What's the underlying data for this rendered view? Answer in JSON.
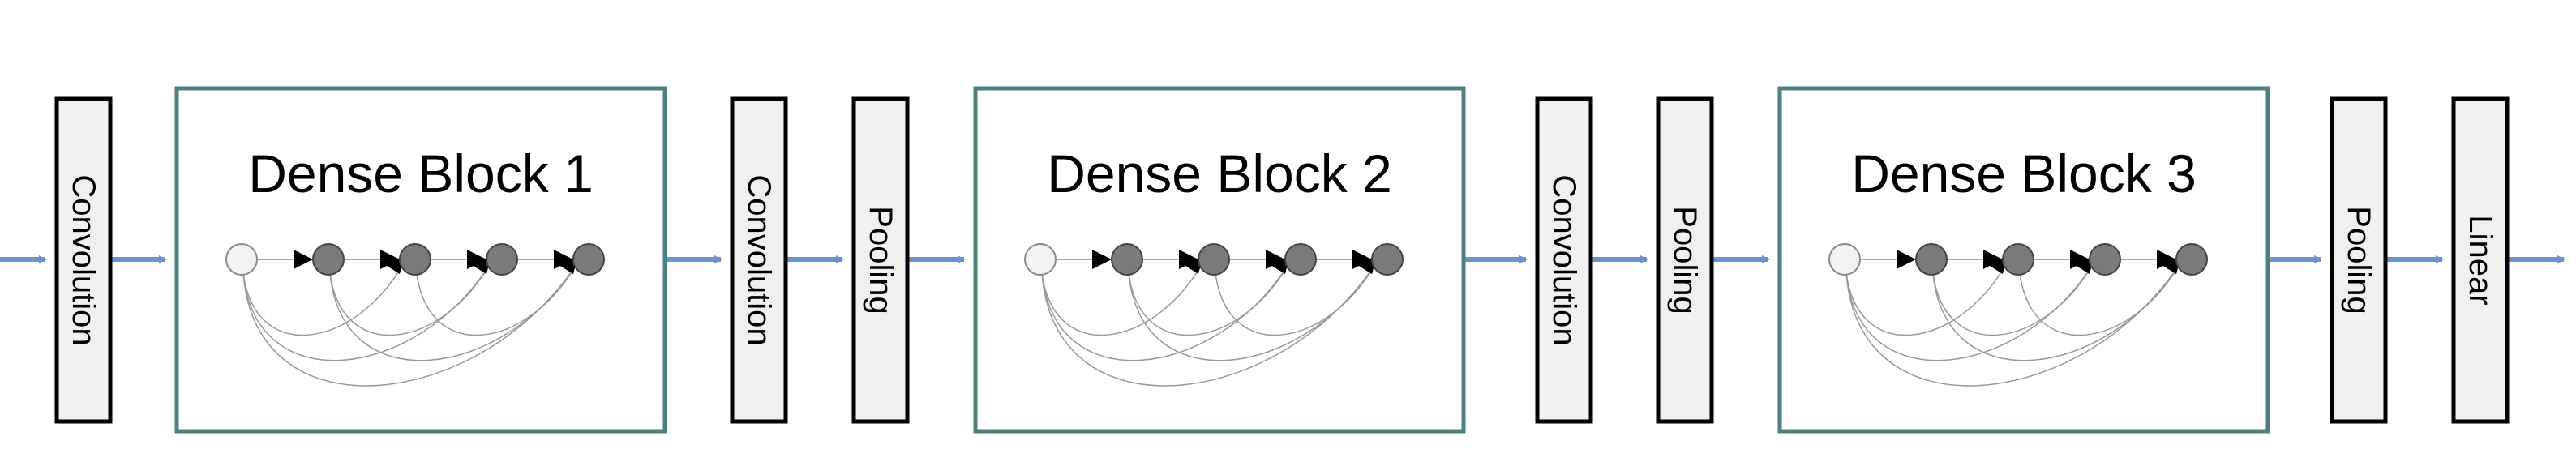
{
  "diagram": {
    "stages": [
      {
        "kind": "layer",
        "label": "Convolution"
      },
      {
        "kind": "block",
        "title": "Dense Block 1"
      },
      {
        "kind": "layer",
        "label": "Convolution"
      },
      {
        "kind": "layer",
        "label": "Pooling"
      },
      {
        "kind": "block",
        "title": "Dense Block 2"
      },
      {
        "kind": "layer",
        "label": "Convolution"
      },
      {
        "kind": "layer",
        "label": "Pooling"
      },
      {
        "kind": "block",
        "title": "Dense Block 3"
      },
      {
        "kind": "layer",
        "label": "Pooling"
      },
      {
        "kind": "layer",
        "label": "Linear"
      }
    ],
    "nodes_per_block": 5,
    "colors": {
      "flow_arrow": "#6d93cf",
      "block_border": "#4e7f7f",
      "layer_fill": "#f0f0f0",
      "node_fill": "#7a7a7a",
      "input_node_fill": "#f3f3f3"
    }
  }
}
